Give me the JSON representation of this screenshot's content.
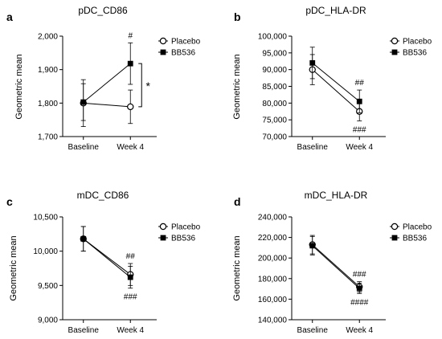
{
  "chart_data": [
    {
      "type": "line",
      "panel_label": "a",
      "title": "pDC_CD86",
      "ylabel": "Geometric mean",
      "categories": [
        "Baseline",
        "Week 4"
      ],
      "ylim": [
        1700,
        2000
      ],
      "yticks": [
        "1,700",
        "1,800",
        "1,900",
        "2,000"
      ],
      "series": [
        {
          "name": "Placebo",
          "marker": "open-circle",
          "values": [
            1800,
            1789
          ],
          "err": [
            70,
            50
          ]
        },
        {
          "name": "BB536",
          "marker": "filled-square",
          "values": [
            1803,
            1918
          ],
          "err": [
            55,
            62
          ]
        }
      ],
      "annotations": [
        {
          "text": "#",
          "series": "BB536",
          "category": "Week 4",
          "where": "above"
        },
        {
          "text": "*",
          "kind": "bracket",
          "category": "Week 4"
        }
      ]
    },
    {
      "type": "line",
      "panel_label": "b",
      "title": "pDC_HLA-DR",
      "ylabel": "Geometric mean",
      "categories": [
        "Baseline",
        "Week 4"
      ],
      "ylim": [
        70000,
        100000
      ],
      "yticks": [
        "70,000",
        "75,000",
        "80,000",
        "85,000",
        "90,000",
        "95,000",
        "100,000"
      ],
      "series": [
        {
          "name": "Placebo",
          "marker": "open-circle",
          "values": [
            90000,
            77500
          ],
          "err": [
            4500,
            2800
          ]
        },
        {
          "name": "BB536",
          "marker": "filled-square",
          "values": [
            92000,
            80500
          ],
          "err": [
            4700,
            3400
          ]
        }
      ],
      "annotations": [
        {
          "text": "##",
          "series": "BB536",
          "category": "Week 4",
          "where": "above"
        },
        {
          "text": "###",
          "series": "Placebo",
          "category": "Week 4",
          "where": "below"
        }
      ]
    },
    {
      "type": "line",
      "panel_label": "c",
      "title": "mDC_CD86",
      "ylabel": "Geometric mean",
      "categories": [
        "Baseline",
        "Week 4"
      ],
      "ylim": [
        9000,
        10500
      ],
      "yticks": [
        "9,000",
        "9,500",
        "10,000",
        "10,500"
      ],
      "series": [
        {
          "name": "Placebo",
          "marker": "open-circle",
          "values": [
            10180,
            9660
          ],
          "err": [
            180,
            160
          ]
        },
        {
          "name": "BB536",
          "marker": "filled-square",
          "values": [
            10180,
            9620
          ],
          "err": [
            180,
            160
          ]
        }
      ],
      "annotations": [
        {
          "text": "##",
          "series": "Placebo",
          "category": "Week 4",
          "where": "above"
        },
        {
          "text": "###",
          "series": "BB536",
          "category": "Week 4",
          "where": "below"
        }
      ]
    },
    {
      "type": "line",
      "panel_label": "d",
      "title": "mDC_HLA-DR",
      "ylabel": "Geometric mean",
      "categories": [
        "Baseline",
        "Week 4"
      ],
      "ylim": [
        140000,
        240000
      ],
      "yticks": [
        "140,000",
        "160,000",
        "180,000",
        "200,000",
        "220,000",
        "240,000"
      ],
      "series": [
        {
          "name": "Placebo",
          "marker": "open-circle",
          "values": [
            213000,
            172000
          ],
          "err": [
            9000,
            5000
          ]
        },
        {
          "name": "BB536",
          "marker": "filled-square",
          "values": [
            212000,
            170500
          ],
          "err": [
            9000,
            5000
          ]
        }
      ],
      "annotations": [
        {
          "text": "###",
          "series": "Placebo",
          "category": "Week 4",
          "where": "above"
        },
        {
          "text": "####",
          "series": "BB536",
          "category": "Week 4",
          "where": "below"
        }
      ]
    }
  ]
}
